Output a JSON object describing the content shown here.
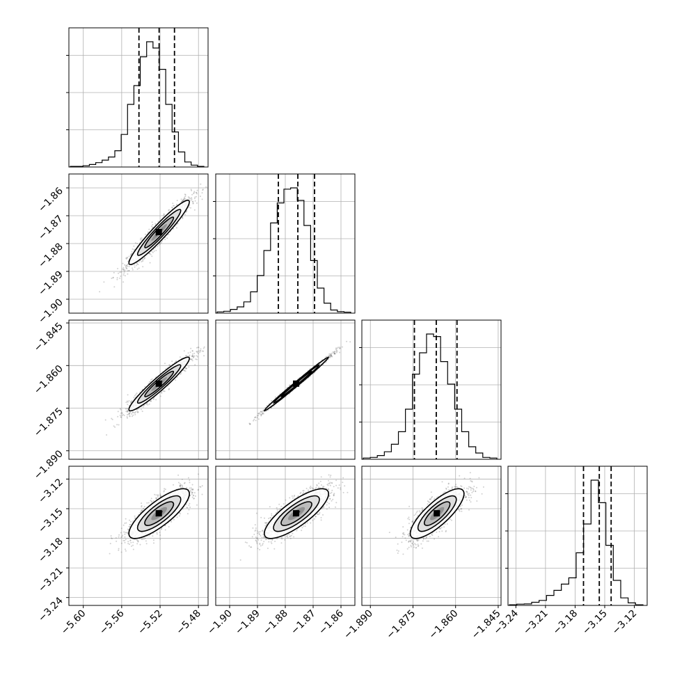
{
  "chart_data": {
    "type": "corner",
    "grid": true,
    "params": [
      {
        "range": [
          -5.615,
          -5.47
        ],
        "ticks": [
          -5.6,
          -5.56,
          -5.52,
          -5.48
        ],
        "tick_labels": [
          "−5.60",
          "−5.56",
          "−5.52",
          "−5.48"
        ],
        "mean": -5.521,
        "sigma": 0.015,
        "quantiles": [
          -5.542,
          -5.521,
          -5.505
        ],
        "histogram": [
          0.005,
          0.005,
          0.01,
          0.02,
          0.035,
          0.055,
          0.08,
          0.13,
          0.26,
          0.5,
          0.65,
          0.88,
          1.0,
          0.95,
          0.78,
          0.5,
          0.28,
          0.12,
          0.04,
          0.015,
          0.005
        ]
      },
      {
        "range": [
          -1.905,
          -1.855
        ],
        "ticks": [
          -1.9,
          -1.89,
          -1.88,
          -1.87,
          -1.86
        ],
        "tick_labels": [
          "−1.90",
          "−1.89",
          "−1.88",
          "−1.87",
          "−1.86"
        ],
        "mean": -1.876,
        "sigma": 0.0055,
        "quantiles": [
          -1.8825,
          -1.8755,
          -1.8695
        ],
        "histogram": [
          0.01,
          0.015,
          0.03,
          0.05,
          0.09,
          0.17,
          0.3,
          0.5,
          0.72,
          0.88,
          0.99,
          1.0,
          0.9,
          0.7,
          0.42,
          0.2,
          0.08,
          0.025,
          0.012,
          0.008
        ]
      },
      {
        "range": [
          -1.893,
          -1.844
        ],
        "ticks": [
          -1.89,
          -1.875,
          -1.86,
          -1.845
        ],
        "tick_labels": [
          "−1.890",
          "−1.875",
          "−1.860",
          "−1.845"
        ],
        "mean": -1.8665,
        "sigma": 0.0045,
        "quantiles": [
          -1.8745,
          -1.8668,
          -1.8595
        ],
        "histogram": [
          0.01,
          0.015,
          0.03,
          0.06,
          0.12,
          0.22,
          0.4,
          0.68,
          0.85,
          1.0,
          0.98,
          0.78,
          0.6,
          0.4,
          0.22,
          0.1,
          0.05,
          0.015,
          0.01
        ]
      },
      {
        "range": [
          -3.248,
          -3.107
        ],
        "ticks": [
          -3.24,
          -3.21,
          -3.18,
          -3.15,
          -3.12
        ],
        "tick_labels": [
          "−3.24",
          "−3.21",
          "−3.18",
          "−3.15",
          "−3.12"
        ],
        "mean": -3.155,
        "sigma": 0.012,
        "quantiles": [
          -3.1715,
          -3.1555,
          -3.1435
        ],
        "histogram": [
          0.005,
          0.01,
          0.012,
          0.025,
          0.04,
          0.08,
          0.12,
          0.17,
          0.22,
          0.42,
          0.65,
          1.0,
          0.82,
          0.48,
          0.2,
          0.06,
          0.02,
          0.005
        ]
      }
    ],
    "correlations": [
      [
        1,
        0.95,
        0.95,
        0.8
      ],
      [
        0.95,
        1,
        0.995,
        0.8
      ],
      [
        0.95,
        0.995,
        1,
        0.8
      ],
      [
        0.8,
        0.8,
        0.8,
        1
      ]
    ],
    "scatter_points_per_panel": 1400
  }
}
